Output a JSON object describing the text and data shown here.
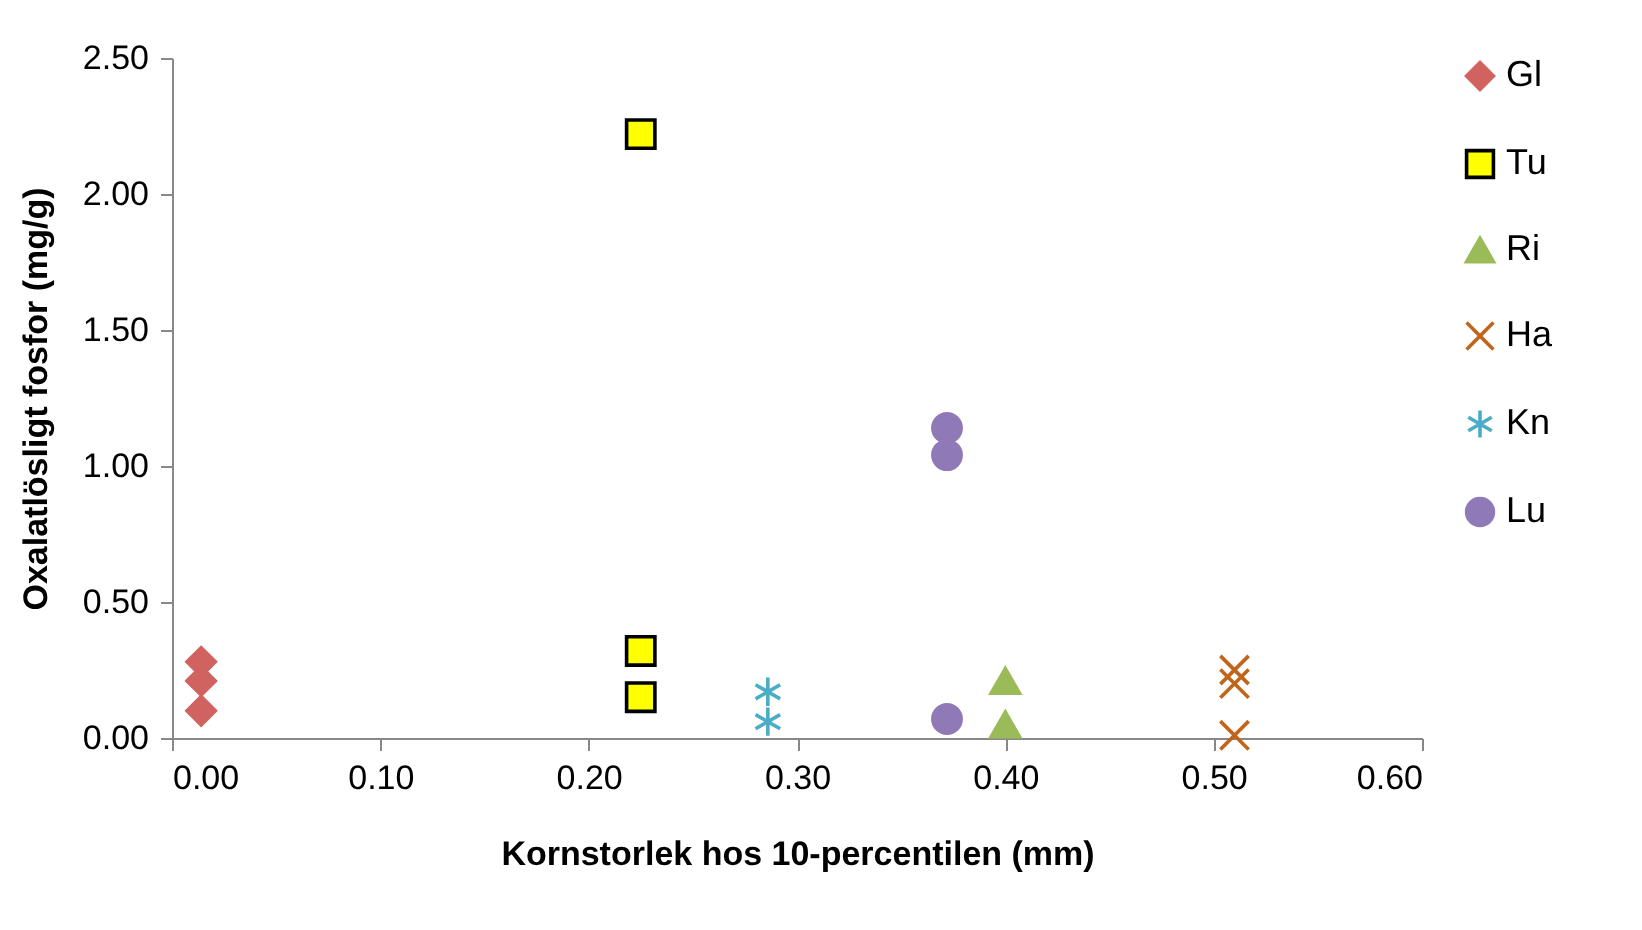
{
  "chart_data": {
    "type": "scatter",
    "xlabel": "Kornstorlek hos 10-percentilen (mm)",
    "ylabel": "Oxalatlösligt fosfor (mg/g)",
    "xlim": [
      0,
      0.6
    ],
    "ylim": [
      0,
      2.5
    ],
    "xticks": [
      {
        "value": 0,
        "label": "0.00"
      },
      {
        "value": 0.1,
        "label": "0.10"
      },
      {
        "value": 0.2,
        "label": "0.20"
      },
      {
        "value": 0.3,
        "label": "0.30"
      },
      {
        "value": 0.4,
        "label": "0.40"
      },
      {
        "value": 0.5,
        "label": "0.50"
      },
      {
        "value": 0.6,
        "label": "0.60"
      }
    ],
    "yticks": [
      {
        "value": 0,
        "label": "0.00"
      },
      {
        "value": 0.5,
        "label": "0.50"
      },
      {
        "value": 1,
        "label": "1.00"
      },
      {
        "value": 1.5,
        "label": "1.50"
      },
      {
        "value": 2,
        "label": "2.00"
      },
      {
        "value": 2.5,
        "label": "2.50"
      }
    ],
    "grid": false,
    "legend": "right",
    "series": [
      {
        "name": "Gl",
        "color": "#d0625f",
        "marker": "diamond",
        "x": [
          0.014,
          0.014,
          0.014
        ],
        "values": [
          0.28,
          0.21,
          0.1
        ]
      },
      {
        "name": "Tu",
        "color": "#ffff00",
        "marker": "square",
        "x": [
          0.225,
          0.225,
          0.225
        ],
        "values": [
          2.22,
          0.32,
          0.15
        ]
      },
      {
        "name": "Ri",
        "color": "#9bbb59",
        "marker": "triangle",
        "x": [
          0.4,
          0.4
        ],
        "values": [
          0.21,
          0.05
        ]
      },
      {
        "name": "Ha",
        "color": "#c0651b",
        "marker": "cross",
        "x": [
          0.51,
          0.51,
          0.51
        ],
        "values": [
          0.25,
          0.2,
          0.01
        ]
      },
      {
        "name": "Kn",
        "color": "#4bacc6",
        "marker": "cross",
        "x": [
          0.286,
          0.286
        ],
        "values": [
          0.17,
          0.06
        ]
      },
      {
        "name": "Lu",
        "color": "#8f79b6",
        "marker": "circle",
        "x": [
          0.372,
          0.372,
          0.372
        ],
        "values": [
          1.14,
          1.04,
          0.07
        ]
      }
    ]
  }
}
